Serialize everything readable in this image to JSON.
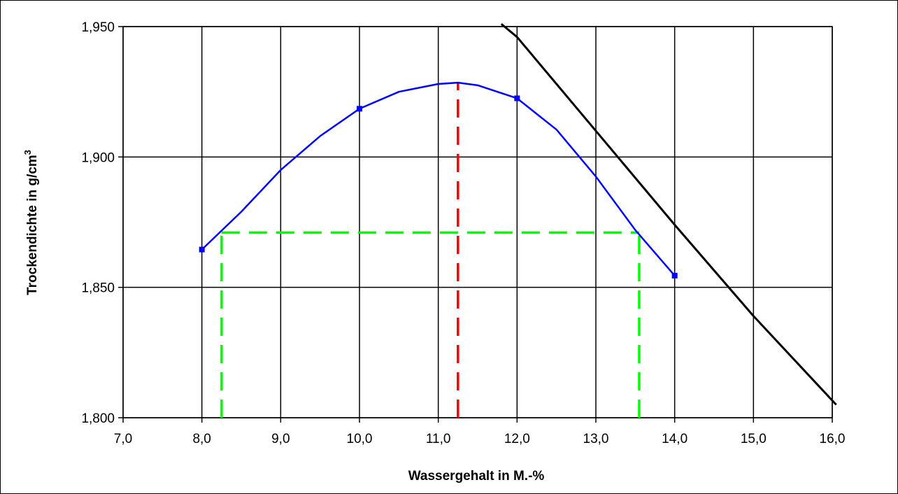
{
  "chart_data": {
    "type": "line",
    "xlabel": "Wassergehalt in M.-%",
    "ylabel": "Trockendichte in g/cm",
    "ylabel_superscript": "3",
    "xlim": [
      7.0,
      16.0
    ],
    "ylim": [
      1.8,
      1.95
    ],
    "grid": true,
    "x_ticks": [
      "7,0",
      "8,0",
      "9,0",
      "10,0",
      "11,0",
      "12,0",
      "13,0",
      "14,0",
      "15,0",
      "16,0"
    ],
    "y_ticks": [
      "1,800",
      "1,850",
      "1,900",
      "1,950"
    ],
    "series": [
      {
        "kind": "proctor-curve",
        "color": "#0000ff",
        "markers": true,
        "points": [
          [
            8.0,
            1.8645
          ],
          [
            10.0,
            1.9185
          ],
          [
            12.0,
            1.9225
          ],
          [
            14.0,
            1.8545
          ]
        ],
        "curve": [
          [
            8.0,
            1.8645
          ],
          [
            8.5,
            1.879
          ],
          [
            9.0,
            1.895
          ],
          [
            9.5,
            1.908
          ],
          [
            10.0,
            1.9185
          ],
          [
            10.5,
            1.925
          ],
          [
            11.0,
            1.928
          ],
          [
            11.25,
            1.9285
          ],
          [
            11.5,
            1.9275
          ],
          [
            12.0,
            1.9225
          ],
          [
            12.5,
            1.9105
          ],
          [
            13.0,
            1.8925
          ],
          [
            13.5,
            1.872
          ],
          [
            14.0,
            1.8545
          ]
        ]
      },
      {
        "kind": "saturation-line",
        "color": "#000000",
        "points": [
          [
            11.8,
            1.951
          ],
          [
            12.0,
            1.946
          ],
          [
            13.0,
            1.91
          ],
          [
            14.0,
            1.874
          ],
          [
            15.0,
            1.839
          ],
          [
            16.05,
            1.805
          ]
        ]
      }
    ],
    "reference_lines": [
      {
        "kind": "optimum-water-content",
        "color": "#ff0000",
        "dashed": true,
        "x": 11.25,
        "y_to": 1.9285
      },
      {
        "kind": "density-level",
        "color": "#00ff00",
        "dashed": true,
        "y": 1.871,
        "x_from": 8.25,
        "x_to": 13.55
      },
      {
        "kind": "lower-water-bound",
        "color": "#00ff00",
        "dashed": true,
        "x": 8.25,
        "y_to": 1.871
      },
      {
        "kind": "upper-water-bound",
        "color": "#00ff00",
        "dashed": true,
        "x": 13.55,
        "y_to": 1.871
      }
    ]
  }
}
